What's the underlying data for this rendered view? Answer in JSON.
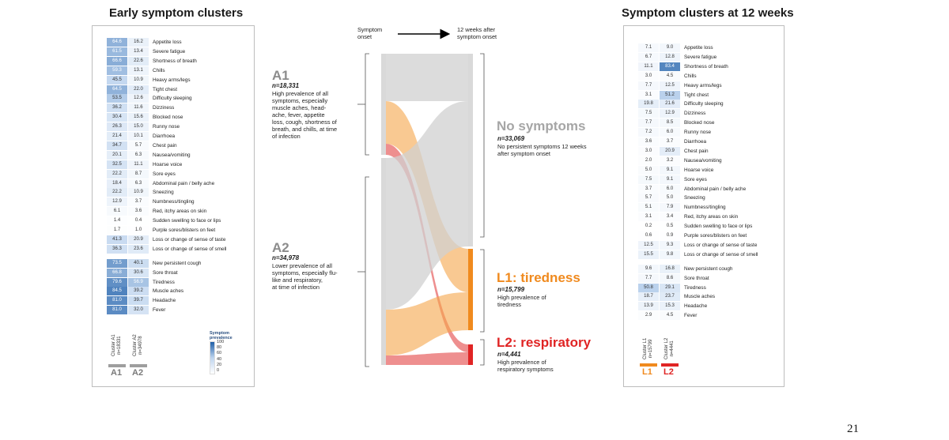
{
  "left_title": "Early symptom clusters",
  "right_title": "Symptom clusters at 12 weeks",
  "page_number": "21",
  "flow_header": {
    "from": "Symptom\nonset",
    "to": "12 weeks after\nsymptom onset"
  },
  "chart_data": [
    {
      "type": "heatmap",
      "title": "Early symptom clusters",
      "columns": [
        "Cluster A1\nn=18331",
        "Cluster A2\nn=34978"
      ],
      "column_footers": [
        "A1",
        "A2"
      ],
      "legend": {
        "title": "Symptom\nprevalence",
        "ticks": [
          "100",
          "80",
          "60",
          "40",
          "20",
          "0"
        ]
      },
      "rows": [
        {
          "symptom": "Appetite loss",
          "values": [
            "64.6",
            "16.2"
          ]
        },
        {
          "symptom": "Severe fatigue",
          "values": [
            "61.5",
            "13.4"
          ]
        },
        {
          "symptom": "Shortness of breath",
          "values": [
            "66.6",
            "22.6"
          ]
        },
        {
          "symptom": "Chills",
          "values": [
            "59.3",
            "13.1"
          ]
        },
        {
          "symptom": "Heavy arms/legs",
          "values": [
            "45.5",
            "10.9"
          ]
        },
        {
          "symptom": "Tight chest",
          "values": [
            "64.5",
            "22.0"
          ]
        },
        {
          "symptom": "Difficulty sleeping",
          "values": [
            "53.5",
            "12.6"
          ]
        },
        {
          "symptom": "Dizziness",
          "values": [
            "36.2",
            "11.6"
          ]
        },
        {
          "symptom": "Blocked nose",
          "values": [
            "30.4",
            "15.6"
          ]
        },
        {
          "symptom": "Runny nose",
          "values": [
            "26.3",
            "15.0"
          ]
        },
        {
          "symptom": "Diarrhoea",
          "values": [
            "21.4",
            "10.1"
          ]
        },
        {
          "symptom": "Chest pain",
          "values": [
            "34.7",
            "5.7"
          ]
        },
        {
          "symptom": "Nausea/vomiting",
          "values": [
            "20.1",
            "6.3"
          ]
        },
        {
          "symptom": "Hoarse voice",
          "values": [
            "32.5",
            "11.1"
          ]
        },
        {
          "symptom": "Sore eyes",
          "values": [
            "22.2",
            "8.7"
          ]
        },
        {
          "symptom": "Abdominal pain / belly ache",
          "values": [
            "18.4",
            "6.3"
          ]
        },
        {
          "symptom": "Sneezing",
          "values": [
            "22.2",
            "10.9"
          ]
        },
        {
          "symptom": "Numbness/tingling",
          "values": [
            "12.9",
            "3.7"
          ]
        },
        {
          "symptom": "Red, itchy areas on skin",
          "values": [
            "6.1",
            "3.6"
          ]
        },
        {
          "symptom": "Sudden swelling to face or lips",
          "values": [
            "1.4",
            "0.4"
          ]
        },
        {
          "symptom": "Purple sores/blisters on feet",
          "values": [
            "1.7",
            "1.0"
          ]
        },
        {
          "symptom": "Loss or change of sense of taste",
          "values": [
            "41.3",
            "20.9"
          ]
        },
        {
          "symptom": "Loss or change of sense of smell",
          "values": [
            "36.3",
            "23.6"
          ]
        },
        {
          "symptom": "New persistent cough",
          "values": [
            "73.5",
            "40.1"
          ]
        },
        {
          "symptom": "Sore throat",
          "values": [
            "66.8",
            "30.6"
          ]
        },
        {
          "symptom": "Tiredness",
          "values": [
            "79.6",
            "56.9"
          ]
        },
        {
          "symptom": "Muscle aches",
          "values": [
            "84.5",
            "39.2"
          ]
        },
        {
          "symptom": "Headache",
          "values": [
            "81.0",
            "39.7"
          ]
        },
        {
          "symptom": "Fever",
          "values": [
            "81.0",
            "32.0"
          ]
        }
      ]
    },
    {
      "type": "heatmap",
      "title": "Symptom clusters at 12 weeks",
      "columns": [
        "Cluster L1\nn=15799",
        "Cluster L2\nn=4441"
      ],
      "column_footers": [
        "L1",
        "L2"
      ],
      "rows": [
        {
          "symptom": "Appetite loss",
          "values": [
            "7.1",
            "9.0"
          ]
        },
        {
          "symptom": "Severe fatigue",
          "values": [
            "6.7",
            "12.8"
          ]
        },
        {
          "symptom": "Shortness of breath",
          "values": [
            "11.1",
            "83.4"
          ]
        },
        {
          "symptom": "Chills",
          "values": [
            "3.0",
            "4.5"
          ]
        },
        {
          "symptom": "Heavy arms/legs",
          "values": [
            "7.7",
            "12.5"
          ]
        },
        {
          "symptom": "Tight chest",
          "values": [
            "3.1",
            "51.2"
          ]
        },
        {
          "symptom": "Difficulty sleeping",
          "values": [
            "19.8",
            "21.6"
          ]
        },
        {
          "symptom": "Dizziness",
          "values": [
            "7.5",
            "12.9"
          ]
        },
        {
          "symptom": "Blocked nose",
          "values": [
            "7.7",
            "8.5"
          ]
        },
        {
          "symptom": "Runny nose",
          "values": [
            "7.2",
            "6.0"
          ]
        },
        {
          "symptom": "Diarrhoea",
          "values": [
            "3.6",
            "3.7"
          ]
        },
        {
          "symptom": "Chest pain",
          "values": [
            "3.0",
            "20.9"
          ]
        },
        {
          "symptom": "Nausea/vomiting",
          "values": [
            "2.0",
            "3.2"
          ]
        },
        {
          "symptom": "Hoarse voice",
          "values": [
            "5.0",
            "9.1"
          ]
        },
        {
          "symptom": "Sore eyes",
          "values": [
            "7.5",
            "9.1"
          ]
        },
        {
          "symptom": "Abdominal pain / belly ache",
          "values": [
            "3.7",
            "6.0"
          ]
        },
        {
          "symptom": "Sneezing",
          "values": [
            "5.7",
            "5.0"
          ]
        },
        {
          "symptom": "Numbness/tingling",
          "values": [
            "5.1",
            "7.9"
          ]
        },
        {
          "symptom": "Red, itchy areas on skin",
          "values": [
            "3.1",
            "3.4"
          ]
        },
        {
          "symptom": "Sudden swelling to face or lips",
          "values": [
            "0.2",
            "0.5"
          ]
        },
        {
          "symptom": "Purple sores/blisters on feet",
          "values": [
            "0.6",
            "0.9"
          ]
        },
        {
          "symptom": "Loss or change of sense of taste",
          "values": [
            "12.5",
            "9.3"
          ]
        },
        {
          "symptom": "Loss or change of sense of smell",
          "values": [
            "15.5",
            "9.8"
          ]
        },
        {
          "symptom": "New persistent cough",
          "values": [
            "9.6",
            "16.8"
          ]
        },
        {
          "symptom": "Sore throat",
          "values": [
            "7.7",
            "8.6"
          ]
        },
        {
          "symptom": "Tiredness",
          "values": [
            "50.8",
            "29.1"
          ]
        },
        {
          "symptom": "Muscle aches",
          "values": [
            "18.7",
            "23.7"
          ]
        },
        {
          "symptom": "Headache",
          "values": [
            "13.9",
            "15.3"
          ]
        },
        {
          "symptom": "Fever",
          "values": [
            "2.9",
            "4.5"
          ]
        }
      ]
    }
  ],
  "flow": {
    "a1": {
      "label": "A1",
      "n": "n=18,331",
      "desc": "High prevalence of all\nsymptoms, especially\nmuscle aches, head-\nache, fever, appetite\nloss, cough, shortness of\nbreath, and chills, at time\nof infection"
    },
    "a2": {
      "label": "A2",
      "n": "n=34,978",
      "desc": "Lower prevalence of all\nsymptoms, especially flu-\nlike and respiratory,\nat time of infection"
    },
    "none": {
      "label": "No symptoms",
      "n": "n=33,069",
      "desc": "No persistent symptoms 12 weeks\nafter symptom onset",
      "color": "#a6a6a6"
    },
    "l1": {
      "label": "L1: tiredness",
      "n": "n=15,799",
      "desc": "High prevalence of\ntiredness",
      "color": "#f08a1e"
    },
    "l2": {
      "label": "L2: respiratory",
      "n": "n=4,441",
      "desc": "High prevalence of\nrespiratory symptoms",
      "color": "#e02424"
    }
  },
  "colors": {
    "heat_high": "#1f5fa8",
    "heat_low": "#ffffff",
    "footer_grey": "#9e9e9e",
    "l1_orange": "#f08a1e",
    "l2_red": "#e02424"
  }
}
